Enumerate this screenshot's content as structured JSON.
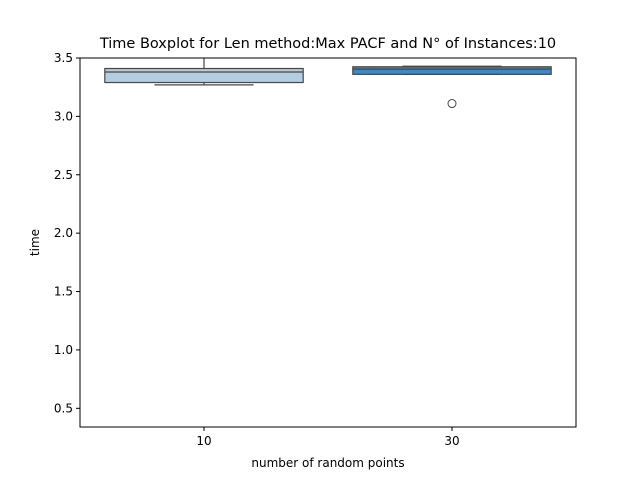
{
  "chart_data": {
    "type": "boxplot",
    "title": "Time Boxplot for Len method:Max PACF and N° of Instances:10",
    "xlabel": "number of random points",
    "ylabel": "time",
    "ylim": [
      0.34,
      3.5
    ],
    "yticks": [
      "0.5",
      "1.0",
      "1.5",
      "2.0",
      "2.5",
      "3.0",
      "3.5"
    ],
    "categories": [
      "10",
      "30"
    ],
    "boxes": [
      {
        "category": "10",
        "color": "#b3cde3",
        "whisker_low": 3.27,
        "q1": 3.29,
        "median": 3.38,
        "q3": 3.41,
        "whisker_high": 3.52,
        "outliers": []
      },
      {
        "category": "30",
        "color": "#3f88c5",
        "whisker_low": 3.36,
        "q1": 3.36,
        "median": 3.405,
        "q3": 3.425,
        "whisker_high": 3.43,
        "outliers": [
          3.11
        ]
      }
    ],
    "grid": false,
    "legend": "none"
  }
}
